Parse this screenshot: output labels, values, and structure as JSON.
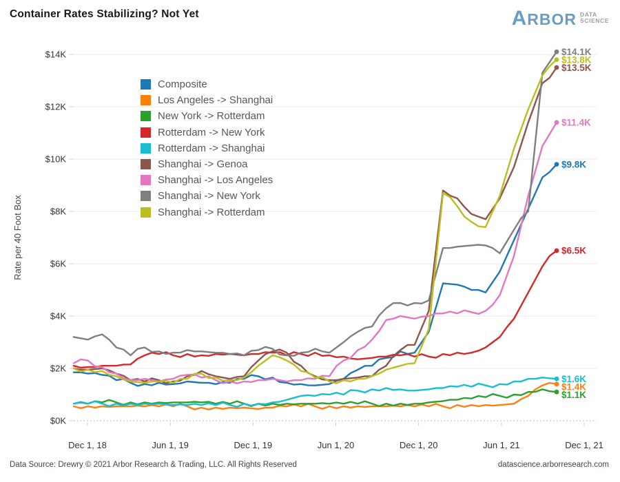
{
  "header": {
    "title": "Container Rates Stabilizing? Not Yet"
  },
  "logo": {
    "brand_first": "A",
    "brand_rest": "RBOR",
    "sub_top": "DATA",
    "sub_bottom": "SCIENCE"
  },
  "y_axis": {
    "title": "Rate per 40 Foot Box",
    "ticks": [
      "$0K",
      "$2K",
      "$4K",
      "$6K",
      "$8K",
      "$10K",
      "$12K",
      "$14K"
    ]
  },
  "x_axis": {
    "ticks": [
      "Dec 1, 18",
      "Jun 1, 19",
      "Dec 1, 19",
      "Jun 1, 20",
      "Dec 1, 20",
      "Jun 1, 21",
      "Dec 1, 21"
    ]
  },
  "footer": {
    "left": "Data Source: Drewry © 2021 Arbor Research & Trading, LLC. All Rights Reserved",
    "right": "datascience.arborresearch.com"
  },
  "chart_data": {
    "type": "line",
    "title": "Container Rates Stabilizing? Not Yet",
    "ylabel": "Rate per 40 Foot Box",
    "unit": "USD thousands per 40-foot container",
    "ylim_k": [
      0,
      14.8
    ],
    "grid": "horizontal",
    "legend_position": "upper-left-inside",
    "x_monthly": [
      "Nov 2018",
      "Dec 2018",
      "Jan 2019",
      "Feb 2019",
      "Mar 2019",
      "Apr 2019",
      "May 2019",
      "Jun 2019",
      "Jul 2019",
      "Aug 2019",
      "Sep 2019",
      "Oct 2019",
      "Nov 2019",
      "Dec 2019",
      "Jan 2020",
      "Feb 2020",
      "Mar 2020",
      "Apr 2020",
      "May 2020",
      "Jun 2020",
      "Jul 2020",
      "Aug 2020",
      "Sep 2020",
      "Oct 2020",
      "Nov 2020",
      "Dec 2020",
      "Jan 2021",
      "Feb 2021",
      "Mar 2021",
      "Apr 2021",
      "May 2021",
      "Jun 2021",
      "Jul 2021",
      "Aug 2021",
      "Sep 2021"
    ],
    "series": [
      {
        "name": "Composite",
        "color": "#1f77b4",
        "end_label": "$9.8K",
        "values": [
          1.85,
          1.8,
          1.75,
          1.55,
          1.45,
          1.4,
          1.45,
          1.4,
          1.5,
          1.45,
          1.4,
          1.45,
          1.6,
          1.7,
          1.65,
          1.45,
          1.4,
          1.35,
          1.4,
          1.6,
          1.95,
          2.1,
          2.4,
          2.65,
          2.6,
          3.4,
          5.25,
          5.2,
          5.0,
          4.9,
          5.7,
          6.9,
          8.1,
          9.3,
          9.8
        ]
      },
      {
        "name": "Los Angeles -> Shanghai",
        "color": "#ff7f0e",
        "end_label": "$1.4K",
        "values": [
          0.55,
          0.55,
          0.55,
          0.55,
          0.55,
          0.55,
          0.55,
          0.55,
          0.55,
          0.5,
          0.5,
          0.5,
          0.5,
          0.45,
          0.5,
          0.55,
          0.55,
          0.55,
          0.55,
          0.55,
          0.55,
          0.55,
          0.55,
          0.55,
          0.55,
          0.55,
          0.55,
          0.6,
          0.6,
          0.6,
          0.6,
          0.65,
          0.95,
          1.35,
          1.4
        ]
      },
      {
        "name": "New York -> Rotterdam",
        "color": "#2ca02c",
        "end_label": "$1.1K",
        "values": [
          0.65,
          0.65,
          0.7,
          0.7,
          0.7,
          0.7,
          0.7,
          0.7,
          0.7,
          0.7,
          0.65,
          0.65,
          0.65,
          0.65,
          0.65,
          0.65,
          0.65,
          0.65,
          0.65,
          0.65,
          0.65,
          0.65,
          0.65,
          0.65,
          0.65,
          0.7,
          0.75,
          0.8,
          0.85,
          0.9,
          0.95,
          1.0,
          1.1,
          1.2,
          1.1
        ]
      },
      {
        "name": "Rotterdam -> New York",
        "color": "#d62728",
        "end_label": "$6.5K",
        "values": [
          2.1,
          2.05,
          2.1,
          2.1,
          2.15,
          2.5,
          2.55,
          2.5,
          2.55,
          2.5,
          2.55,
          2.55,
          2.5,
          2.55,
          2.6,
          2.5,
          2.55,
          2.6,
          2.5,
          2.45,
          2.35,
          2.4,
          2.45,
          2.5,
          2.45,
          2.45,
          2.55,
          2.6,
          2.6,
          2.8,
          3.2,
          3.9,
          4.9,
          5.9,
          6.5
        ]
      },
      {
        "name": "Rotterdam -> Shanghai",
        "color": "#17becf",
        "end_label": "$1.6K",
        "values": [
          0.65,
          0.65,
          0.65,
          0.65,
          0.65,
          0.65,
          0.65,
          0.6,
          0.6,
          0.6,
          0.6,
          0.6,
          0.65,
          0.65,
          0.7,
          0.8,
          0.95,
          0.95,
          1.0,
          1.0,
          1.15,
          1.2,
          1.25,
          1.2,
          1.15,
          1.2,
          1.25,
          1.3,
          1.3,
          1.35,
          1.4,
          1.5,
          1.6,
          1.65,
          1.6
        ]
      },
      {
        "name": "Shanghai -> Genoa",
        "color": "#8c564b",
        "end_label": "$13.5K",
        "values": [
          2.0,
          1.95,
          2.0,
          1.8,
          1.55,
          1.5,
          1.55,
          1.5,
          1.7,
          1.9,
          1.7,
          1.6,
          1.7,
          2.3,
          2.65,
          2.6,
          2.1,
          1.7,
          1.55,
          1.6,
          1.65,
          1.7,
          2.1,
          2.7,
          2.9,
          4.2,
          8.8,
          8.5,
          7.9,
          7.7,
          8.5,
          9.7,
          11.4,
          12.9,
          13.5
        ]
      },
      {
        "name": "Shanghai -> Los Angeles",
        "color": "#e377c2",
        "end_label": "$11.4K",
        "values": [
          2.2,
          2.3,
          2.05,
          1.8,
          1.55,
          1.6,
          1.5,
          1.6,
          1.75,
          1.65,
          1.55,
          1.5,
          1.5,
          1.55,
          1.6,
          1.5,
          1.55,
          1.6,
          1.7,
          2.3,
          2.7,
          3.1,
          3.85,
          4.0,
          3.9,
          4.0,
          4.1,
          4.1,
          4.15,
          4.2,
          4.8,
          6.3,
          8.6,
          10.5,
          11.4
        ]
      },
      {
        "name": "Shanghai -> New York",
        "color": "#7f7f7f",
        "end_label": "$14.1K",
        "values": [
          3.2,
          3.1,
          3.3,
          2.8,
          2.5,
          2.8,
          2.65,
          2.6,
          2.7,
          2.65,
          2.6,
          2.55,
          2.5,
          2.7,
          2.75,
          2.5,
          2.6,
          2.75,
          2.6,
          3.0,
          3.4,
          3.6,
          4.3,
          4.5,
          4.5,
          4.6,
          6.6,
          6.65,
          6.7,
          6.7,
          6.4,
          7.3,
          8.0,
          13.3,
          14.1
        ]
      },
      {
        "name": "Shanghai -> Rotterdam",
        "color": "#bcbd22",
        "end_label": "$13.8K",
        "values": [
          2.0,
          1.95,
          1.9,
          1.7,
          1.5,
          1.45,
          1.5,
          1.45,
          1.6,
          1.8,
          1.65,
          1.55,
          1.65,
          2.1,
          2.5,
          2.3,
          1.9,
          1.65,
          1.5,
          1.55,
          1.6,
          1.7,
          1.95,
          2.1,
          2.2,
          3.5,
          8.7,
          8.2,
          7.6,
          7.4,
          8.6,
          10.4,
          11.9,
          13.2,
          13.8
        ]
      }
    ]
  }
}
